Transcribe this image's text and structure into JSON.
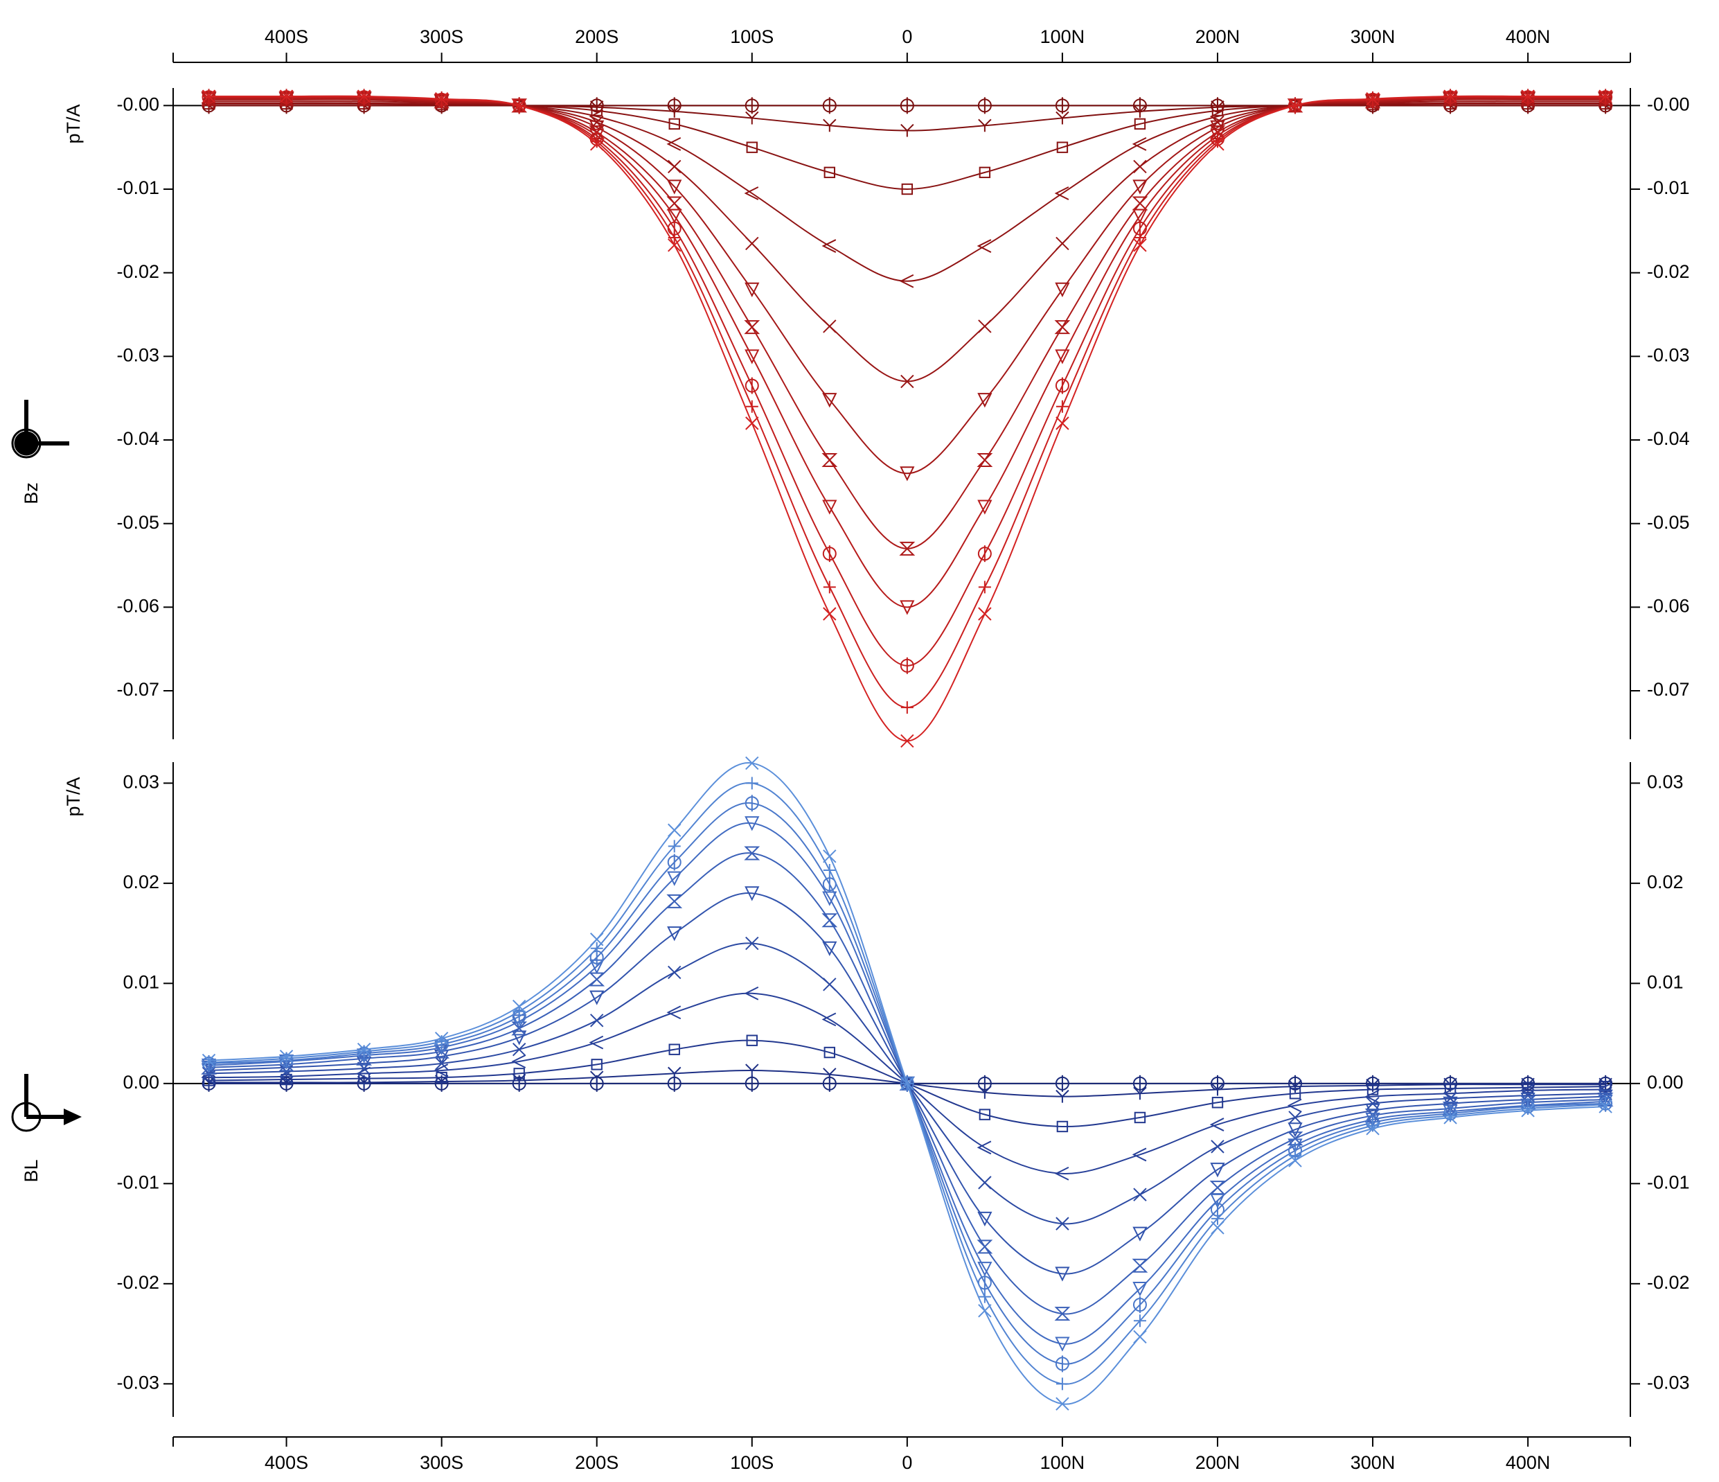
{
  "chart_data": [
    {
      "type": "line",
      "axis_label": "pT/A",
      "component": "Bz",
      "xaxis_position": "top",
      "x": [
        -450,
        -400,
        -350,
        -300,
        -250,
        -200,
        -150,
        -100,
        -50,
        0,
        50,
        100,
        150,
        200,
        250,
        300,
        350,
        400,
        450
      ],
      "xlim": [
        -473,
        466
      ],
      "xticks": [
        {
          "value": -400,
          "label": "400S"
        },
        {
          "value": -300,
          "label": "300S"
        },
        {
          "value": -200,
          "label": "200S"
        },
        {
          "value": -100,
          "label": "100S"
        },
        0,
        {
          "value": 100,
          "label": "100N"
        },
        {
          "value": 200,
          "label": "200N"
        },
        {
          "value": 300,
          "label": "300N"
        },
        {
          "value": 400,
          "label": "400N"
        }
      ],
      "ylim": [
        -0.0758,
        0.0021
      ],
      "yticks": [
        {
          "value": 0,
          "label": "-0.00"
        },
        -0.01,
        -0.02,
        -0.03,
        -0.04,
        -0.05,
        -0.06,
        -0.07
      ],
      "series": [
        {
          "color": "#7a0f0f",
          "marker": "circle",
          "values": [
            0,
            0,
            0,
            0,
            0,
            0,
            0,
            0,
            0,
            0,
            0,
            0,
            0,
            0,
            0,
            0,
            0,
            0,
            0
          ]
        },
        {
          "color": "#801010",
          "marker": "triup",
          "values": [
            0,
            0,
            0,
            0,
            0,
            -0.0002,
            -0.0007,
            -0.0015,
            -0.0024,
            -0.003,
            -0.0024,
            -0.0015,
            -0.0007,
            -0.0002,
            0,
            0,
            0,
            0,
            0
          ]
        },
        {
          "color": "#881212",
          "marker": "square",
          "values": [
            0.0002,
            0.0002,
            0.0002,
            0.0001,
            0,
            -0.0006,
            -0.0022,
            -0.005,
            -0.008,
            -0.01,
            -0.008,
            -0.005,
            -0.0022,
            -0.0006,
            0,
            0.0001,
            0.0002,
            0.0002,
            0.0002
          ]
        },
        {
          "color": "#901313",
          "marker": "lt",
          "values": [
            0.0003,
            0.0003,
            0.0003,
            0.0002,
            0,
            -0.0013,
            -0.0046,
            -0.0105,
            -0.0168,
            -0.021,
            -0.0168,
            -0.0105,
            -0.0046,
            -0.0013,
            0,
            0.0002,
            0.0003,
            0.0003,
            0.0003
          ]
        },
        {
          "color": "#991515",
          "marker": "x",
          "values": [
            0.0005,
            0.0005,
            0.0005,
            0.0003,
            0,
            -0.002,
            -0.0073,
            -0.0165,
            -0.0264,
            -0.033,
            -0.0264,
            -0.0165,
            -0.0073,
            -0.002,
            0,
            0.0003,
            0.0005,
            0.0005,
            0.0005
          ]
        },
        {
          "color": "#a31717",
          "marker": "tridown",
          "values": [
            0.0007,
            0.0007,
            0.0007,
            0.0004,
            0,
            -0.0026,
            -0.0097,
            -0.022,
            -0.0352,
            -0.044,
            -0.0352,
            -0.022,
            -0.0097,
            -0.0026,
            0,
            0.0004,
            0.0007,
            0.0007,
            0.0007
          ]
        },
        {
          "color": "#ad1919",
          "marker": "hour",
          "values": [
            0.0008,
            0.0008,
            0.0008,
            0.0005,
            0,
            -0.0032,
            -0.0117,
            -0.0265,
            -0.0424,
            -0.053,
            -0.0424,
            -0.0265,
            -0.0117,
            -0.0032,
            0,
            0.0005,
            0.0008,
            0.0008,
            0.0008
          ]
        },
        {
          "color": "#b71b1b",
          "marker": "tridown",
          "values": [
            0.0009,
            0.0009,
            0.0009,
            0.0006,
            0,
            -0.0036,
            -0.0132,
            -0.03,
            -0.048,
            -0.06,
            -0.048,
            -0.03,
            -0.0132,
            -0.0036,
            0,
            0.0006,
            0.0009,
            0.0009,
            0.0009
          ]
        },
        {
          "color": "#c11d1d",
          "marker": "circle",
          "values": [
            0.001,
            0.001,
            0.001,
            0.0007,
            0,
            -0.004,
            -0.0147,
            -0.0335,
            -0.0536,
            -0.067,
            -0.0536,
            -0.0335,
            -0.0147,
            -0.004,
            0,
            0.0007,
            0.001,
            0.001,
            0.001
          ]
        },
        {
          "color": "#cb1f1f",
          "marker": "plus",
          "values": [
            0.0011,
            0.0011,
            0.0011,
            0.0007,
            0,
            -0.0043,
            -0.0158,
            -0.036,
            -0.0576,
            -0.072,
            -0.0576,
            -0.036,
            -0.0158,
            -0.0043,
            0,
            0.0007,
            0.0011,
            0.0011,
            0.0011
          ]
        },
        {
          "color": "#d42222",
          "marker": "x",
          "values": [
            0.0011,
            0.0011,
            0.0011,
            0.0008,
            0,
            -0.0046,
            -0.0167,
            -0.038,
            -0.0608,
            -0.076,
            -0.0608,
            -0.038,
            -0.0167,
            -0.0046,
            0,
            0.0008,
            0.0011,
            0.0011,
            0.0011
          ]
        }
      ]
    },
    {
      "type": "line",
      "axis_label": "pT/A",
      "component": "BL",
      "xaxis_position": "bottom",
      "x": [
        -450,
        -400,
        -350,
        -300,
        -250,
        -200,
        -150,
        -100,
        -50,
        0,
        50,
        100,
        150,
        200,
        250,
        300,
        350,
        400,
        450
      ],
      "xlim": [
        -473,
        466
      ],
      "xticks": [
        {
          "value": -400,
          "label": "400S"
        },
        {
          "value": -300,
          "label": "300S"
        },
        {
          "value": -200,
          "label": "200S"
        },
        {
          "value": -100,
          "label": "100S"
        },
        0,
        {
          "value": 100,
          "label": "100N"
        },
        {
          "value": 200,
          "label": "200N"
        },
        {
          "value": 300,
          "label": "300N"
        },
        {
          "value": 400,
          "label": "400N"
        }
      ],
      "ylim": [
        -0.0333,
        0.0321
      ],
      "yticks": [
        0.03,
        0.02,
        0.01,
        {
          "value": 0,
          "label": "0.00"
        },
        -0.01,
        -0.02,
        -0.03
      ],
      "series": [
        {
          "color": "#1a2a7a",
          "marker": "circle",
          "values": [
            0,
            0,
            0,
            0,
            0,
            0,
            0,
            0,
            0,
            0,
            0,
            0,
            0,
            0,
            0,
            0,
            0,
            0,
            0
          ]
        },
        {
          "color": "#1e3085",
          "marker": "triup",
          "values": [
            0.0001,
            0.0001,
            0.0001,
            0.0002,
            0.0003,
            0.0006,
            0.001,
            0.0013,
            0.0009,
            0,
            -0.0009,
            -0.0013,
            -0.001,
            -0.0006,
            -0.0003,
            -0.0002,
            -0.0001,
            -0.0001,
            -0.0001
          ]
        },
        {
          "color": "#22388f",
          "marker": "square",
          "values": [
            0.0003,
            0.0004,
            0.0005,
            0.0006,
            0.001,
            0.0019,
            0.0034,
            0.0043,
            0.0031,
            0,
            -0.0031,
            -0.0043,
            -0.0034,
            -0.0019,
            -0.001,
            -0.0006,
            -0.0005,
            -0.0004,
            -0.0003
          ]
        },
        {
          "color": "#274099",
          "marker": "lt",
          "values": [
            0.0006,
            0.0007,
            0.001,
            0.0013,
            0.0022,
            0.0041,
            0.0071,
            0.009,
            0.0064,
            0,
            -0.0064,
            -0.009,
            -0.0071,
            -0.0041,
            -0.0022,
            -0.0013,
            -0.001,
            -0.0007,
            -0.0006
          ]
        },
        {
          "color": "#2c4aa3",
          "marker": "x",
          "values": [
            0.001,
            0.0012,
            0.0015,
            0.002,
            0.0034,
            0.0063,
            0.0111,
            0.014,
            0.0099,
            0,
            -0.0099,
            -0.014,
            -0.0111,
            -0.0063,
            -0.0034,
            -0.002,
            -0.0015,
            -0.0012,
            -0.001
          ]
        },
        {
          "color": "#3254ad",
          "marker": "tridown",
          "values": [
            0.0013,
            0.0016,
            0.002,
            0.0027,
            0.0046,
            0.0086,
            0.015,
            0.019,
            0.0135,
            0,
            -0.0135,
            -0.019,
            -0.015,
            -0.0086,
            -0.0046,
            -0.0027,
            -0.002,
            -0.0016,
            -0.0013
          ]
        },
        {
          "color": "#3a60b8",
          "marker": "hour",
          "values": [
            0.0016,
            0.0019,
            0.0025,
            0.0032,
            0.0055,
            0.0104,
            0.0182,
            0.023,
            0.0163,
            0,
            -0.0163,
            -0.023,
            -0.0182,
            -0.0104,
            -0.0055,
            -0.0032,
            -0.0025,
            -0.0019,
            -0.0016
          ]
        },
        {
          "color": "#426cc2",
          "marker": "tridown",
          "values": [
            0.0018,
            0.0022,
            0.0028,
            0.0036,
            0.0062,
            0.0117,
            0.0205,
            0.026,
            0.0185,
            0,
            -0.0185,
            -0.026,
            -0.0205,
            -0.0117,
            -0.0062,
            -0.0036,
            -0.0028,
            -0.0022,
            -0.0018
          ]
        },
        {
          "color": "#4a78ca",
          "marker": "circle",
          "values": [
            0.002,
            0.0023,
            0.003,
            0.0039,
            0.0067,
            0.0126,
            0.0221,
            0.028,
            0.0199,
            0,
            -0.0199,
            -0.028,
            -0.0221,
            -0.0126,
            -0.0067,
            -0.0039,
            -0.003,
            -0.0023,
            -0.002
          ]
        },
        {
          "color": "#5284d2",
          "marker": "plus",
          "values": [
            0.0021,
            0.0025,
            0.0032,
            0.0042,
            0.0072,
            0.0135,
            0.0237,
            0.03,
            0.0213,
            0,
            -0.0213,
            -0.03,
            -0.0237,
            -0.0135,
            -0.0072,
            -0.0042,
            -0.0032,
            -0.0025,
            -0.0021
          ]
        },
        {
          "color": "#5b8fda",
          "marker": "x",
          "values": [
            0.0023,
            0.0027,
            0.0034,
            0.0045,
            0.0077,
            0.0144,
            0.0253,
            0.032,
            0.0227,
            0,
            -0.0227,
            -0.032,
            -0.0253,
            -0.0144,
            -0.0077,
            -0.0045,
            -0.0034,
            -0.0027,
            -0.0023
          ]
        }
      ]
    }
  ]
}
